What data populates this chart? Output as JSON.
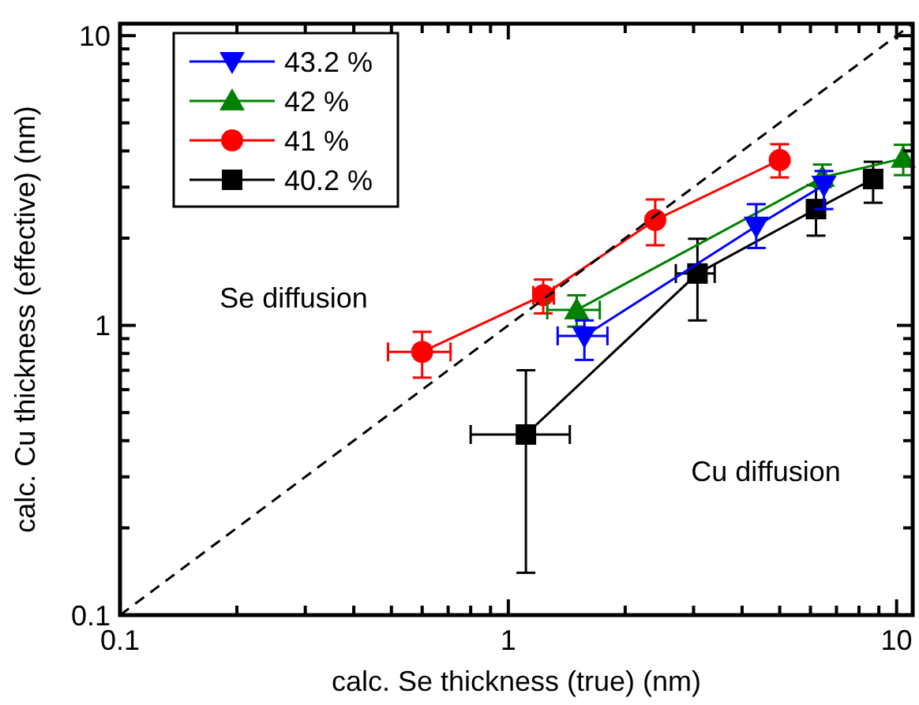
{
  "chart_data": {
    "type": "line",
    "xlabel": "calc. Se thickness (true) (nm)",
    "ylabel": "calc. Cu thickness (effective) (nm)",
    "log": "xy",
    "xlim": [
      0.1,
      11
    ],
    "ylim": [
      0.1,
      11
    ],
    "xticks": [
      0.1,
      {
        "value": 0.2,
        "label": null
      },
      {
        "value": 0.3,
        "label": null
      },
      {
        "value": 0.4,
        "label": null
      },
      {
        "value": 0.5,
        "label": null
      },
      {
        "value": 0.6,
        "label": null
      },
      {
        "value": 0.7,
        "label": null
      },
      {
        "value": 0.8,
        "label": null
      },
      {
        "value": 0.9,
        "label": null
      },
      1,
      {
        "value": 2,
        "label": null
      },
      {
        "value": 3,
        "label": null
      },
      {
        "value": 4,
        "label": null
      },
      {
        "value": 5,
        "label": null
      },
      {
        "value": 6,
        "label": null
      },
      {
        "value": 7,
        "label": null
      },
      {
        "value": 8,
        "label": null
      },
      {
        "value": 9,
        "label": null
      },
      10
    ],
    "yticks": [
      0.1,
      {
        "value": 0.2,
        "label": null
      },
      {
        "value": 0.3,
        "label": null
      },
      {
        "value": 0.4,
        "label": null
      },
      {
        "value": 0.5,
        "label": null
      },
      {
        "value": 0.6,
        "label": null
      },
      {
        "value": 0.7,
        "label": null
      },
      {
        "value": 0.8,
        "label": null
      },
      {
        "value": 0.9,
        "label": null
      },
      1,
      {
        "value": 2,
        "label": null
      },
      {
        "value": 3,
        "label": null
      },
      {
        "value": 4,
        "label": null
      },
      {
        "value": 5,
        "label": null
      },
      {
        "value": 6,
        "label": null
      },
      {
        "value": 7,
        "label": null
      },
      {
        "value": 8,
        "label": null
      },
      {
        "value": 9,
        "label": null
      },
      10
    ],
    "legend": "top left",
    "grid": false,
    "annotations": [
      "Se diffusion",
      "Cu diffusion"
    ],
    "series": [
      {
        "type": "line",
        "line_style": "dashed",
        "marker": "none",
        "color": "#000000",
        "x": [
          0.1,
          11
        ],
        "values": [
          0.1,
          11
        ]
      },
      {
        "name": "43.2 %",
        "color": "#0000ff",
        "marker": "triangle-down",
        "x": [
          1.57,
          4.35,
          6.5
        ],
        "values": [
          0.92,
          2.2,
          3.05
        ],
        "errors": [
          [
            0.76,
            1.04
          ],
          [
            1.85,
            2.62
          ],
          [
            2.52,
            3.41
          ]
        ],
        "xerrors": [
          [
            1.34,
            1.8
          ],
          null,
          null
        ]
      },
      {
        "name": "42 %",
        "color": "#008000",
        "marker": "triangle",
        "x": [
          1.5,
          6.44,
          10.4
        ],
        "values": [
          1.13,
          3.24,
          3.77
        ],
        "errors": [
          [
            0.99,
            1.27
          ],
          [
            3.0,
            3.59
          ],
          [
            3.3,
            4.2
          ]
        ],
        "xerrors": [
          [
            1.26,
            1.72
          ],
          null,
          null
        ]
      },
      {
        "name": "41 %",
        "color": "#ff0000",
        "marker": "circle",
        "x": [
          0.6,
          1.23,
          2.39,
          5.0
        ],
        "values": [
          0.81,
          1.27,
          2.31,
          3.72
        ],
        "errors": [
          [
            0.66,
            0.95
          ],
          [
            1.1,
            1.44
          ],
          [
            1.89,
            2.72
          ],
          [
            3.24,
            4.22
          ]
        ],
        "xerrors": [
          [
            0.49,
            0.71
          ],
          [
            1.16,
            1.31
          ],
          null,
          null
        ]
      },
      {
        "name": "40.2 %",
        "color": "#000000",
        "marker": "square",
        "x": [
          1.11,
          3.07,
          6.2,
          8.7
        ],
        "values": [
          0.42,
          1.51,
          2.52,
          3.2
        ],
        "errors": [
          [
            0.14,
            0.7
          ],
          [
            1.04,
            1.99
          ],
          [
            2.04,
            3.05
          ],
          [
            2.65,
            3.67
          ]
        ],
        "xerrors": [
          [
            0.8,
            1.44
          ],
          [
            2.7,
            3.4
          ],
          null,
          null
        ]
      }
    ]
  }
}
